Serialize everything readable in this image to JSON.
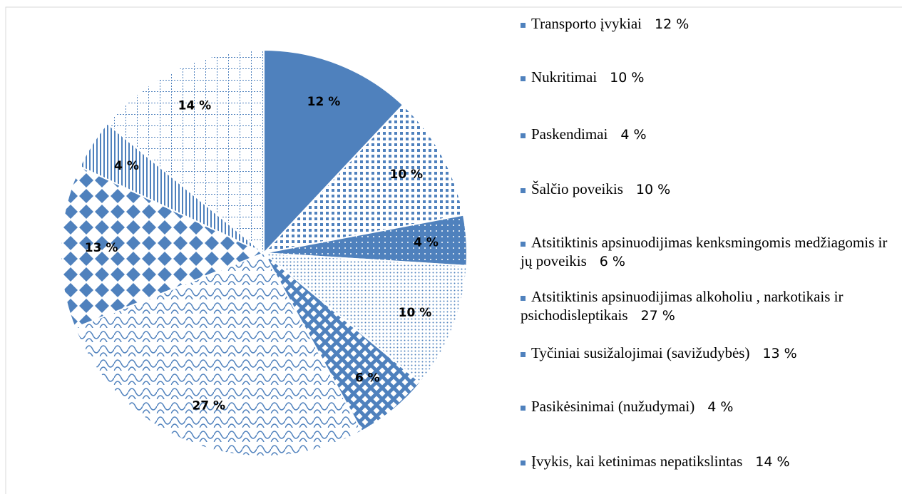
{
  "chart_data": {
    "type": "pie",
    "categories": [
      "Transporto įvykiai",
      "Nukritimai",
      "Paskendimai",
      "Šalčio poveikis",
      "Atsitiktinis apsinuodijimas kenksmingomis medžiagomis ir jų poveikis",
      "Atsitiktinis apsinuodijimas  alkoholiu , narkotikais ir psichodisleptikais",
      "Tyčiniai susižalojimai (savižudybės)",
      "Pasikėsinimai (nužudymai)",
      "Įvykis, kai ketinimas nepatikslintas"
    ],
    "values": [
      12,
      10,
      4,
      10,
      6,
      27,
      13,
      4,
      14
    ],
    "value_labels": [
      "12 %",
      "10 %",
      "4 %",
      "10 %",
      "6 %",
      "27 %",
      "13 %",
      "4 %",
      "14 %"
    ],
    "color": "#4f81bd"
  }
}
